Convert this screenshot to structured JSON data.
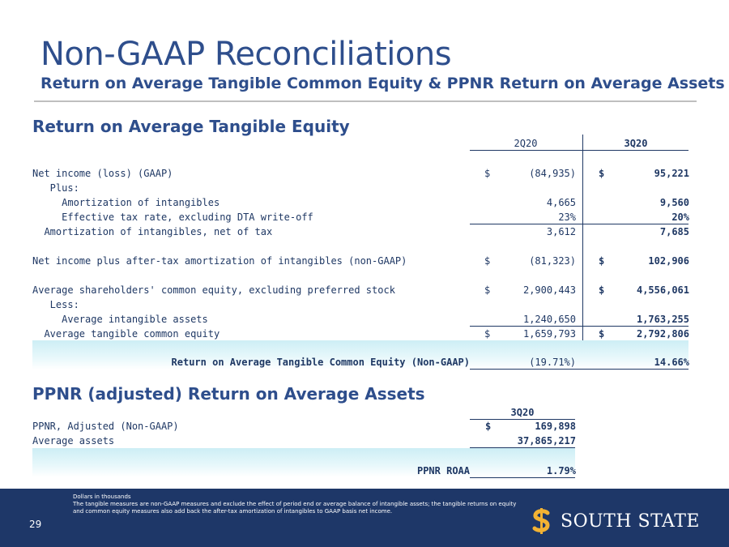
{
  "header": {
    "title": "Non-GAAP Reconciliations",
    "subtitle": "Return on Average Tangible Common Equity & PPNR Return on Average Assets"
  },
  "rotce": {
    "heading": "Return on Average Tangible Equity",
    "col1": "2Q20",
    "col2": "3Q20",
    "rows": [
      {
        "label": "Net income (loss) (GAAP)",
        "d1": "$",
        "v1": "(84,935)",
        "d2": "$",
        "v2": "95,221"
      },
      {
        "label": "   Plus:",
        "v1": "",
        "v2": ""
      },
      {
        "label": "     Amortization of intangibles",
        "v1": "4,665",
        "v2": "9,560"
      },
      {
        "label": "     Effective tax rate, excluding DTA write-off",
        "v1": "23%",
        "v2": "20%"
      },
      {
        "label": "  Amortization of intangibles, net of tax",
        "v1": "3,612",
        "v2": "7,685"
      },
      {
        "label": "Net income plus after-tax amortization of intangibles (non-GAAP)",
        "d1": "$",
        "v1": "(81,323)",
        "d2": "$",
        "v2": "102,906"
      },
      {
        "label": "Average shareholders' common equity, excluding preferred stock",
        "d1": "$",
        "v1": "2,900,443",
        "d2": "$",
        "v2": "4,556,061"
      },
      {
        "label": "   Less:",
        "v1": "",
        "v2": ""
      },
      {
        "label": "     Average intangible assets",
        "v1": "1,240,650",
        "v2": "1,763,255"
      },
      {
        "label": "  Average tangible common equity",
        "d1": "$",
        "v1": "1,659,793",
        "d2": "$",
        "v2": "2,792,806"
      }
    ],
    "result_label": "Return on Average Tangible Common Equity (Non-GAAP)",
    "result_v1": "(19.71%)",
    "result_v2": "14.66%"
  },
  "ppnr": {
    "heading": "PPNR (adjusted) Return on Average Assets",
    "col1": "3Q20",
    "rows": [
      {
        "label": "PPNR, Adjusted (Non-GAAP)",
        "d1": "$",
        "v1": "169,898"
      },
      {
        "label": "Average assets",
        "v1": "37,865,217"
      }
    ],
    "result_label": "PPNR ROAA",
    "result_v1": "1.79%"
  },
  "footer": {
    "page_number": "29",
    "note_line1": "Dollars in thousands",
    "note_line2": "The tangible measures are non-GAAP measures and exclude the effect of period end or average balance of intangible assets; the tangible returns on equity and common equity measures also add back the after-tax amortization of intangibles to GAAP basis net income.",
    "logo_text": "SOUTH STATE",
    "logo_icon": "dollar-s-icon"
  }
}
